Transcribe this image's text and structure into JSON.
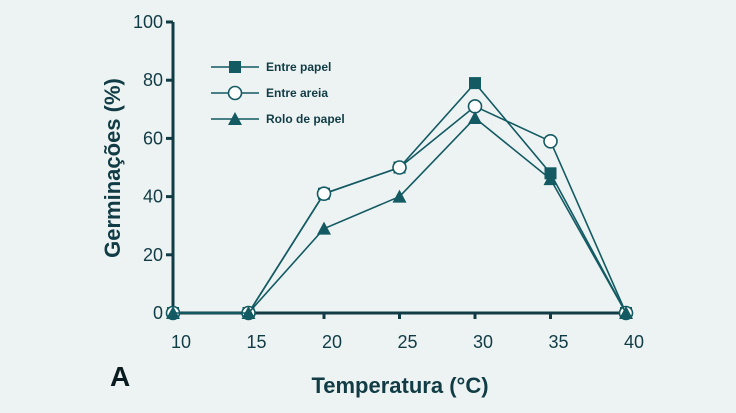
{
  "chart_data": {
    "type": "line",
    "panel_label": "A",
    "xlabel": "Temperatura (°C)",
    "ylabel": "Germinações (%)",
    "x": [
      10,
      15,
      20,
      25,
      30,
      35,
      40
    ],
    "xlim": [
      10,
      40
    ],
    "ylim": [
      0,
      100
    ],
    "xticks": [
      "10",
      "15",
      "20",
      "25",
      "30",
      "35",
      "40"
    ],
    "yticks": [
      "0",
      "20",
      "40",
      "60",
      "80",
      "100"
    ],
    "grid": false,
    "legend_position": "top-left",
    "colors": {
      "series": "#135a63",
      "axis": "#113c45",
      "background": "#edf3f3"
    },
    "series": [
      {
        "name": "Entre papel",
        "marker": "square-filled",
        "values": [
          0,
          0,
          41,
          50,
          79,
          48,
          0
        ]
      },
      {
        "name": "Entre areia",
        "marker": "circle-open",
        "values": [
          0,
          0,
          41,
          50,
          71,
          59,
          0
        ]
      },
      {
        "name": "Rolo de papel",
        "marker": "triangle-filled",
        "values": [
          0,
          0,
          29,
          40,
          67,
          46,
          0
        ]
      }
    ]
  }
}
